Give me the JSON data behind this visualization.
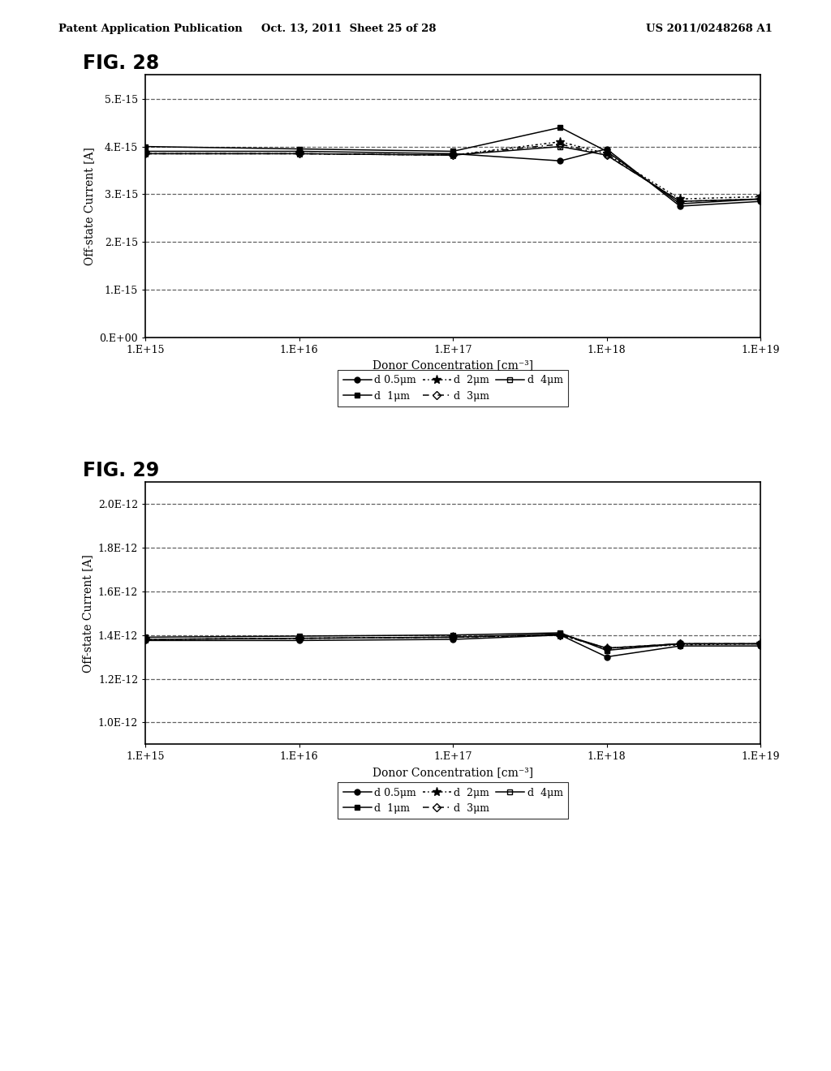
{
  "header_left": "Patent Application Publication",
  "header_mid": "Oct. 13, 2011  Sheet 25 of 28",
  "header_right": "US 2011/0248268 A1",
  "fig28_title": "FIG. 28",
  "fig29_title": "FIG. 29",
  "x_values": [
    1000000000000000.0,
    1e+16,
    1e+17,
    5e+17,
    1e+18,
    3e+18,
    1e+19
  ],
  "fig28": {
    "ylabel": "Off-state Current [A]",
    "xlabel": "Donor Concentration [cm⁻³]",
    "ylim": [
      0.0,
      5.5e-15
    ],
    "yticks": [
      0.0,
      1e-15,
      2e-15,
      3e-15,
      4e-15,
      5e-15
    ],
    "ytick_labels": [
      "0.E+00",
      "1.E-15",
      "2.E-15",
      "3.E-15",
      "4.E-15",
      "5.E-15"
    ],
    "xtick_labels": [
      "1.E+15",
      "1.E+16",
      "1.E+17",
      "1.E+18",
      "1.E+19"
    ],
    "series": {
      "d05": [
        3.9e-15,
        3.9e-15,
        3.85e-15,
        3.7e-15,
        3.95e-15,
        2.75e-15,
        2.85e-15
      ],
      "d1": [
        4e-15,
        3.95e-15,
        3.9e-15,
        4.4e-15,
        3.9e-15,
        2.8e-15,
        2.9e-15
      ],
      "d2": [
        3.85e-15,
        3.85e-15,
        3.82e-15,
        4.1e-15,
        3.85e-15,
        2.9e-15,
        2.95e-15
      ],
      "d3": [
        3.85e-15,
        3.85e-15,
        3.82e-15,
        4.05e-15,
        3.82e-15,
        2.85e-15,
        2.9e-15
      ],
      "d4": [
        3.85e-15,
        3.85e-15,
        3.82e-15,
        4e-15,
        3.82e-15,
        2.85e-15,
        2.9e-15
      ]
    }
  },
  "fig29": {
    "ylabel": "Off-state Current [A]",
    "xlabel": "Donor Concentration [cm⁻³]",
    "ylim": [
      9e-13,
      2.1e-12
    ],
    "yticks": [
      1e-12,
      1.2e-12,
      1.4e-12,
      1.6e-12,
      1.8e-12,
      2e-12
    ],
    "ytick_labels": [
      "1.0E-12",
      "1.2E-12",
      "1.4E-12",
      "1.6E-12",
      "1.8E-12",
      "2.0E-12"
    ],
    "xtick_labels": [
      "1.E+15",
      "1.E+16",
      "1.E+17",
      "1.E+18",
      "1.E+19"
    ],
    "series": {
      "d05": [
        1.375e-12,
        1.375e-12,
        1.38e-12,
        1.4e-12,
        1.3e-12,
        1.35e-12,
        1.35e-12
      ],
      "d1": [
        1.39e-12,
        1.395e-12,
        1.4e-12,
        1.41e-12,
        1.33e-12,
        1.36e-12,
        1.36e-12
      ],
      "d2": [
        1.38e-12,
        1.385e-12,
        1.39e-12,
        1.4e-12,
        1.34e-12,
        1.355e-12,
        1.36e-12
      ],
      "d3": [
        1.38e-12,
        1.385e-12,
        1.39e-12,
        1.4e-12,
        1.34e-12,
        1.36e-12,
        1.36e-12
      ],
      "d4": [
        1.38e-12,
        1.385e-12,
        1.39e-12,
        1.405e-12,
        1.34e-12,
        1.36e-12,
        1.36e-12
      ]
    }
  },
  "background_color": "#ffffff",
  "line_color": "#000000",
  "grid_color": "#444444"
}
